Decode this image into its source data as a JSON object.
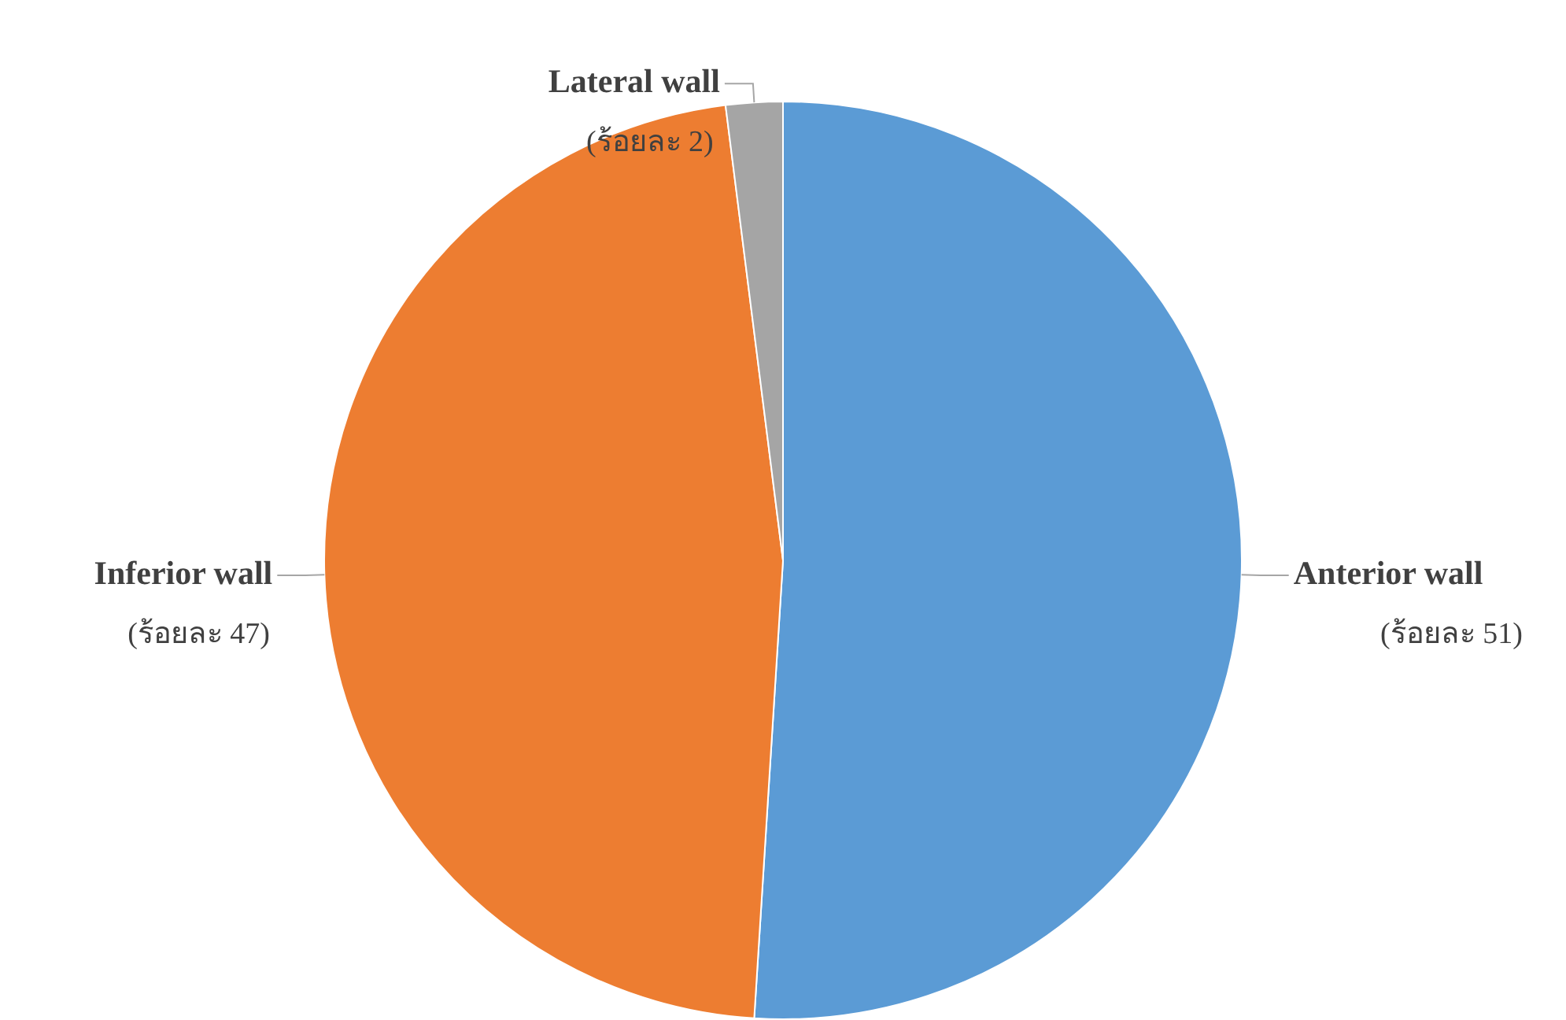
{
  "chart_data": {
    "type": "pie",
    "categories": [
      "Anterior wall",
      "Inferior wall",
      "Lateral wall"
    ],
    "values": [
      51,
      47,
      2
    ],
    "colors": [
      "#5b9bd5",
      "#ed7d31",
      "#a5a5a5"
    ],
    "value_labels": [
      "(ร้อยละ 51)",
      "(ร้อยละ 47)",
      "(ร้อยละ 2)"
    ],
    "legend": false
  }
}
